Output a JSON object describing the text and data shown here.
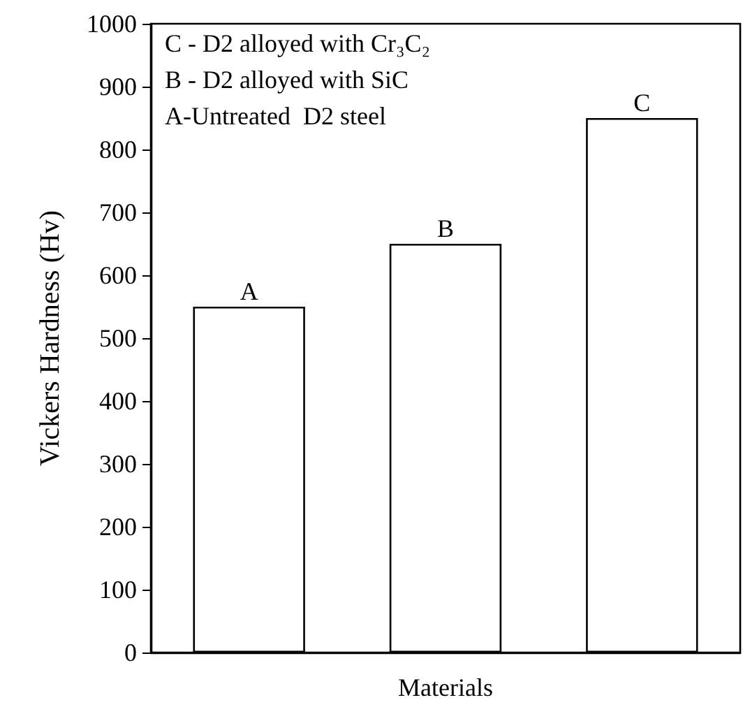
{
  "chart_data": {
    "type": "bar",
    "xlabel": "Materials",
    "ylabel": "Vickers Hardness (Hv)",
    "categories": [
      "A",
      "B",
      "C"
    ],
    "values": [
      550,
      650,
      850
    ],
    "color": "#ffffff",
    "ylim": [
      0,
      1000
    ],
    "yticks": [
      0,
      100,
      200,
      300,
      400,
      500,
      600,
      700,
      800,
      900,
      1000
    ],
    "tick_labels": "y",
    "grid": false,
    "annotations": [
      "C - D2 alloyed with Cr₃C₂",
      "B - D2 alloyed with SiC",
      "A-Untreated  D2 steel"
    ]
  }
}
